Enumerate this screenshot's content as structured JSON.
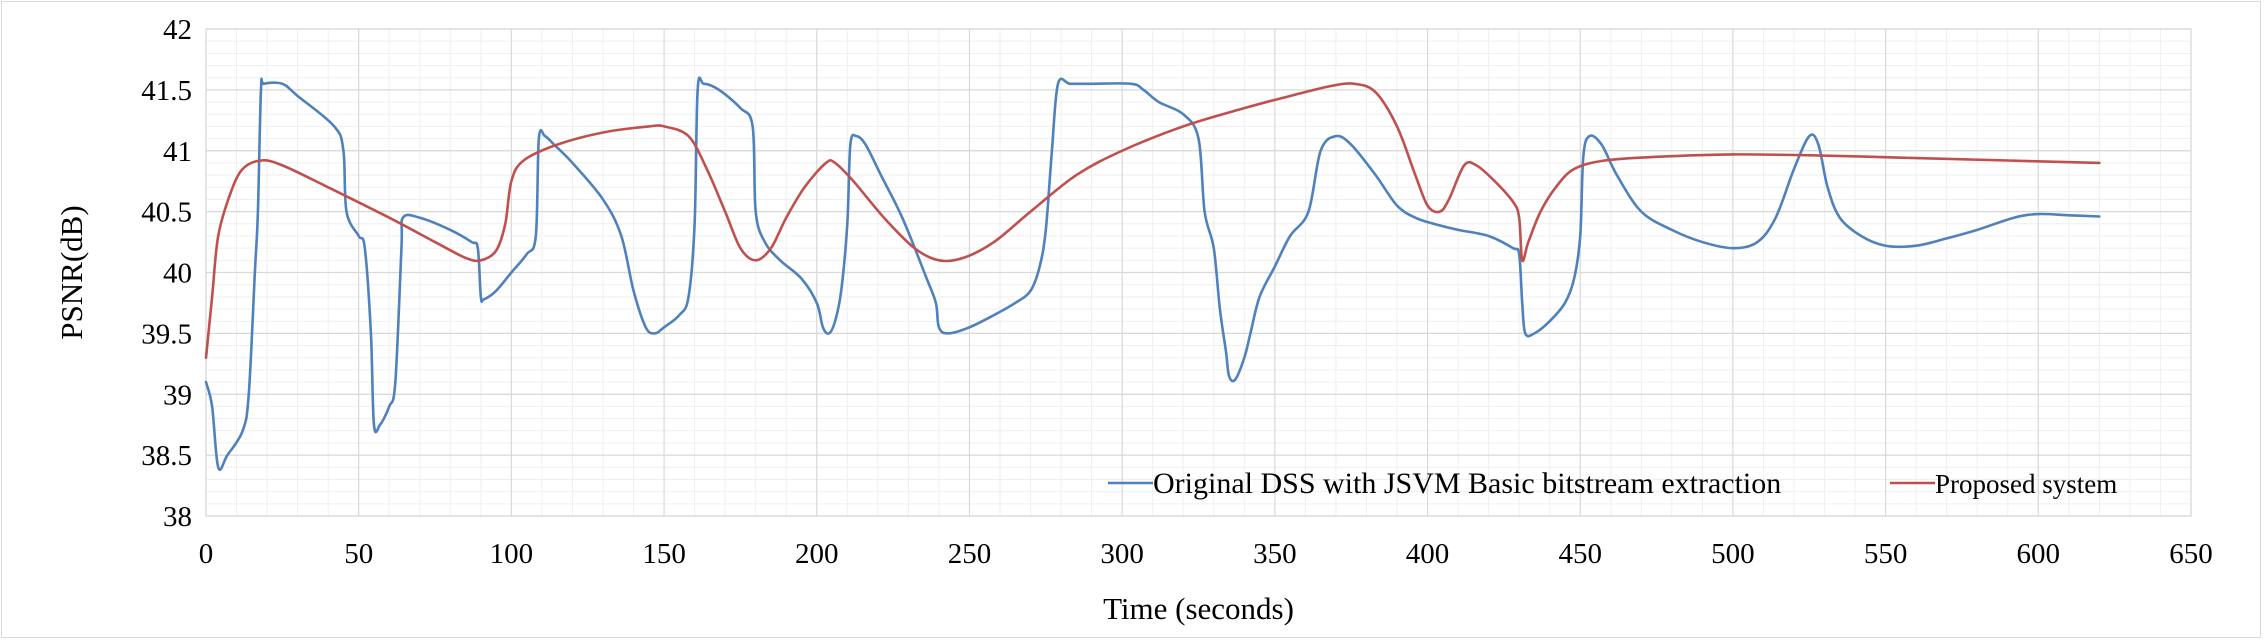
{
  "chart_data": {
    "type": "line",
    "title": "",
    "xlabel": "Time (seconds)",
    "ylabel": "PSNR(dB)",
    "xlim": [
      0,
      650
    ],
    "ylim": [
      38,
      42
    ],
    "x_ticks": [
      0,
      50,
      100,
      150,
      200,
      250,
      300,
      350,
      400,
      450,
      500,
      550,
      600,
      650
    ],
    "y_ticks": [
      38,
      38.5,
      39,
      39.5,
      40,
      40.5,
      41,
      41.5,
      42
    ],
    "grid": true,
    "legend_position": "bottom-right",
    "series": [
      {
        "name": "Original DSS with JSVM Basic bitstream extraction",
        "color": "#4f81bd",
        "points": [
          [
            0,
            39.1
          ],
          [
            2,
            38.9
          ],
          [
            4,
            38.4
          ],
          [
            7,
            38.5
          ],
          [
            12,
            38.7
          ],
          [
            14,
            39.0
          ],
          [
            16,
            40.0
          ],
          [
            17,
            40.5
          ],
          [
            18,
            41.5
          ],
          [
            19,
            41.55
          ],
          [
            25,
            41.55
          ],
          [
            30,
            41.45
          ],
          [
            42,
            41.2
          ],
          [
            45,
            41.0
          ],
          [
            46,
            40.5
          ],
          [
            50,
            40.3
          ],
          [
            52,
            40.2
          ],
          [
            54,
            39.5
          ],
          [
            55,
            38.75
          ],
          [
            57,
            38.75
          ],
          [
            60,
            38.9
          ],
          [
            62,
            39.1
          ],
          [
            64,
            40.2
          ],
          [
            64.5,
            40.45
          ],
          [
            70,
            40.45
          ],
          [
            80,
            40.35
          ],
          [
            87,
            40.25
          ],
          [
            89,
            40.2
          ],
          [
            90,
            39.8
          ],
          [
            91,
            39.78
          ],
          [
            95,
            39.85
          ],
          [
            100,
            40.0
          ],
          [
            105,
            40.15
          ],
          [
            108,
            40.3
          ],
          [
            109,
            41.1
          ],
          [
            111,
            41.12
          ],
          [
            114,
            41.05
          ],
          [
            120,
            40.9
          ],
          [
            130,
            40.6
          ],
          [
            136,
            40.3
          ],
          [
            140,
            39.85
          ],
          [
            144,
            39.55
          ],
          [
            147,
            39.5
          ],
          [
            150,
            39.55
          ],
          [
            155,
            39.65
          ],
          [
            158,
            39.8
          ],
          [
            160,
            40.4
          ],
          [
            161,
            41.5
          ],
          [
            163,
            41.55
          ],
          [
            168,
            41.5
          ],
          [
            175,
            41.35
          ],
          [
            179,
            41.2
          ],
          [
            180,
            40.5
          ],
          [
            183,
            40.25
          ],
          [
            188,
            40.1
          ],
          [
            195,
            39.95
          ],
          [
            200,
            39.75
          ],
          [
            202,
            39.55
          ],
          [
            204,
            39.5
          ],
          [
            206,
            39.6
          ],
          [
            208,
            39.85
          ],
          [
            210,
            40.4
          ],
          [
            211,
            41.05
          ],
          [
            213,
            41.12
          ],
          [
            216,
            41.05
          ],
          [
            221,
            40.8
          ],
          [
            228,
            40.45
          ],
          [
            236,
            39.95
          ],
          [
            239,
            39.75
          ],
          [
            240,
            39.55
          ],
          [
            243,
            39.5
          ],
          [
            250,
            39.55
          ],
          [
            258,
            39.65
          ],
          [
            265,
            39.75
          ],
          [
            270,
            39.85
          ],
          [
            273,
            40.05
          ],
          [
            275,
            40.35
          ],
          [
            277,
            41.0
          ],
          [
            279,
            41.55
          ],
          [
            283,
            41.55
          ],
          [
            290,
            41.55
          ],
          [
            303,
            41.55
          ],
          [
            307,
            41.5
          ],
          [
            312,
            41.4
          ],
          [
            320,
            41.3
          ],
          [
            325,
            41.1
          ],
          [
            327,
            40.5
          ],
          [
            330,
            40.2
          ],
          [
            332,
            39.7
          ],
          [
            334,
            39.35
          ],
          [
            335,
            39.15
          ],
          [
            337,
            39.12
          ],
          [
            340,
            39.3
          ],
          [
            342,
            39.5
          ],
          [
            345,
            39.8
          ],
          [
            350,
            40.05
          ],
          [
            355,
            40.3
          ],
          [
            361,
            40.5
          ],
          [
            365,
            41.0
          ],
          [
            370,
            41.12
          ],
          [
            375,
            41.05
          ],
          [
            383,
            40.8
          ],
          [
            390,
            40.55
          ],
          [
            396,
            40.45
          ],
          [
            402,
            40.4
          ],
          [
            410,
            40.35
          ],
          [
            420,
            40.3
          ],
          [
            428,
            40.2
          ],
          [
            430,
            40.15
          ],
          [
            431,
            39.75
          ],
          [
            432,
            39.5
          ],
          [
            435,
            39.5
          ],
          [
            440,
            39.6
          ],
          [
            445,
            39.75
          ],
          [
            448,
            39.95
          ],
          [
            450,
            40.3
          ],
          [
            451,
            40.95
          ],
          [
            453,
            41.12
          ],
          [
            457,
            41.05
          ],
          [
            462,
            40.8
          ],
          [
            470,
            40.5
          ],
          [
            480,
            40.35
          ],
          [
            490,
            40.25
          ],
          [
            500,
            40.2
          ],
          [
            508,
            40.25
          ],
          [
            514,
            40.45
          ],
          [
            520,
            40.85
          ],
          [
            525,
            41.12
          ],
          [
            528,
            41.05
          ],
          [
            531,
            40.7
          ],
          [
            535,
            40.45
          ],
          [
            542,
            40.3
          ],
          [
            550,
            40.22
          ],
          [
            560,
            40.22
          ],
          [
            570,
            40.28
          ],
          [
            580,
            40.35
          ],
          [
            592,
            40.45
          ],
          [
            600,
            40.48
          ],
          [
            610,
            40.47
          ],
          [
            620,
            40.46
          ]
        ]
      },
      {
        "name": "Proposed system",
        "color": "#c0504d",
        "points": [
          [
            0,
            39.3
          ],
          [
            2,
            39.8
          ],
          [
            4,
            40.3
          ],
          [
            8,
            40.65
          ],
          [
            12,
            40.85
          ],
          [
            18,
            40.92
          ],
          [
            25,
            40.88
          ],
          [
            40,
            40.7
          ],
          [
            60,
            40.45
          ],
          [
            75,
            40.25
          ],
          [
            85,
            40.12
          ],
          [
            90,
            40.1
          ],
          [
            95,
            40.18
          ],
          [
            98,
            40.4
          ],
          [
            100,
            40.75
          ],
          [
            104,
            40.92
          ],
          [
            115,
            41.05
          ],
          [
            130,
            41.15
          ],
          [
            145,
            41.2
          ],
          [
            150,
            41.2
          ],
          [
            158,
            41.12
          ],
          [
            164,
            40.85
          ],
          [
            170,
            40.5
          ],
          [
            175,
            40.2
          ],
          [
            180,
            40.1
          ],
          [
            185,
            40.2
          ],
          [
            190,
            40.45
          ],
          [
            196,
            40.7
          ],
          [
            203,
            40.9
          ],
          [
            206,
            40.9
          ],
          [
            212,
            40.75
          ],
          [
            222,
            40.45
          ],
          [
            232,
            40.2
          ],
          [
            240,
            40.1
          ],
          [
            248,
            40.12
          ],
          [
            258,
            40.25
          ],
          [
            270,
            40.5
          ],
          [
            285,
            40.8
          ],
          [
            300,
            41.0
          ],
          [
            320,
            41.2
          ],
          [
            340,
            41.35
          ],
          [
            355,
            41.45
          ],
          [
            368,
            41.53
          ],
          [
            376,
            41.55
          ],
          [
            383,
            41.48
          ],
          [
            390,
            41.2
          ],
          [
            396,
            40.8
          ],
          [
            400,
            40.55
          ],
          [
            404,
            40.5
          ],
          [
            407,
            40.6
          ],
          [
            412,
            40.88
          ],
          [
            416,
            40.88
          ],
          [
            422,
            40.75
          ],
          [
            428,
            40.58
          ],
          [
            430,
            40.45
          ],
          [
            431,
            40.1
          ],
          [
            433,
            40.25
          ],
          [
            437,
            40.5
          ],
          [
            442,
            40.7
          ],
          [
            448,
            40.85
          ],
          [
            458,
            40.92
          ],
          [
            475,
            40.95
          ],
          [
            500,
            40.97
          ],
          [
            530,
            40.96
          ],
          [
            560,
            40.94
          ],
          [
            590,
            40.92
          ],
          [
            620,
            40.9
          ]
        ]
      }
    ]
  }
}
